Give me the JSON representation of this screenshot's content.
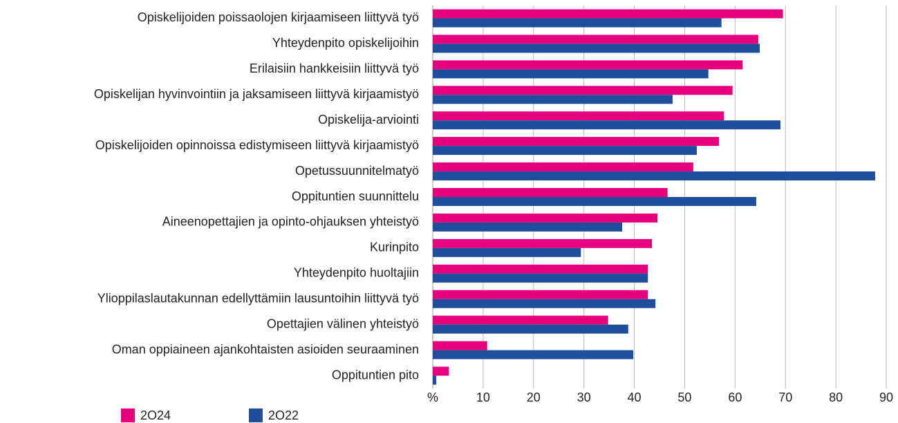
{
  "chart_data": {
    "type": "hbar",
    "categories": [
      "Opiskelijoiden poissaolojen kirjaamiseen liittyvä työ",
      "Yhteydenpito opiskelijoihin",
      "Erilaisiin hankkeisiin liittyvä työ",
      "Opiskelijan hyvinvointiin ja jaksamiseen liittyvä kirjaamistyö",
      "Opiskelija-arviointi",
      "Opiskelijoiden opinnoissa edistymiseen liittyvä kirjaamistyö",
      "Opetussuunnitelmatyö",
      "Oppituntien suunnittelu",
      "Aineenopettajien ja opinto-ohjauksen yhteistyö",
      "Kurinpito",
      "Yhteydenpito huoltajiin",
      "Ylioppilaslautakunnan edellyttämiin lausuntoihin liittyvä työ",
      "Opettajien välinen yhteistyö",
      "Oman oppiaineen ajankohtaisten asioiden seuraaminen",
      "Oppituntien pito"
    ],
    "series": [
      {
        "name": "2O24",
        "color": "#e6007e",
        "values": [
          69.5,
          64.6,
          61.5,
          59.5,
          57.8,
          56.8,
          51.7,
          46.6,
          44.6,
          43.5,
          42.7,
          42.7,
          34.8,
          10.8,
          3.2
        ]
      },
      {
        "name": "2O22",
        "color": "#1f4e9c",
        "values": [
          57.3,
          64.9,
          54.7,
          47.6,
          69,
          52.4,
          87.8,
          64.2,
          37.6,
          29.4,
          42.7,
          44.2,
          38.8,
          39.8,
          0.7
        ]
      }
    ],
    "xlim": [
      0,
      90
    ],
    "xticks": [
      {
        "value": 0,
        "label": "%"
      },
      10,
      20,
      30,
      40,
      50,
      60,
      70,
      80,
      90
    ],
    "grid": true
  }
}
